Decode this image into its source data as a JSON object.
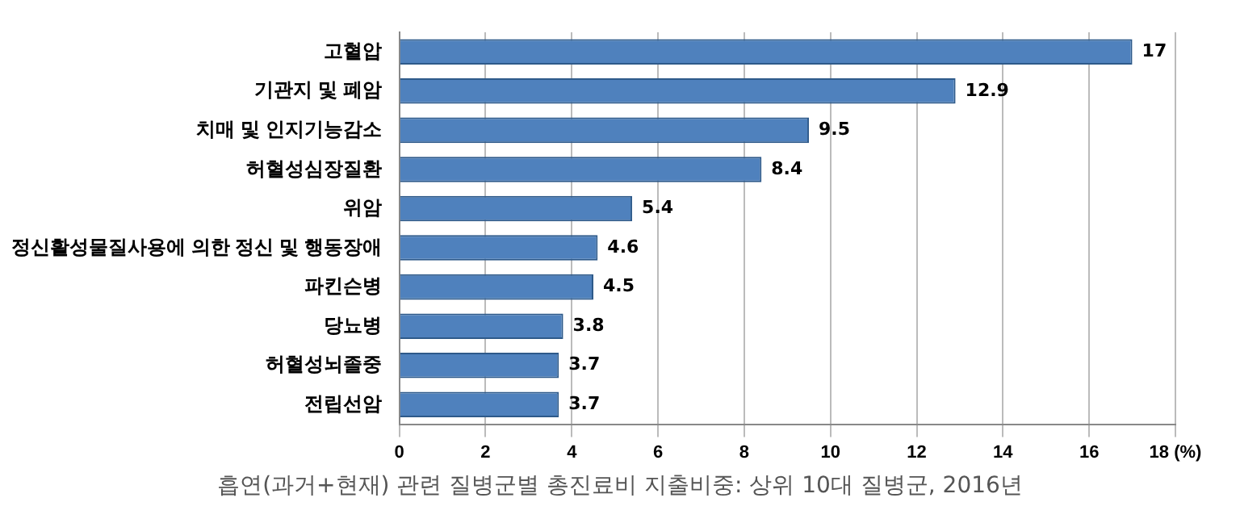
{
  "chart_data": {
    "type": "bar",
    "orientation": "horizontal",
    "categories": [
      "고혈압",
      "기관지 및 폐암",
      "치매 및 인지기능감소",
      "허혈성심장질환",
      "위암",
      "정신활성물질사용에 의한 정신 및 행동장애",
      "파킨슨병",
      "당뇨병",
      "허혈성뇌졸중",
      "전립선암"
    ],
    "values": [
      17,
      12.9,
      9.5,
      8.4,
      5.4,
      4.6,
      4.5,
      3.8,
      3.7,
      3.7
    ],
    "color": "#4f81bd",
    "xlim": [
      0,
      18
    ],
    "xticks": [
      0,
      2,
      4,
      6,
      8,
      10,
      12,
      14,
      16,
      {
        "value": 18,
        "label": "18 (%)"
      }
    ],
    "grid": "x",
    "data_labels": true,
    "annotations": [
      "흡연(과거+현재) 관련 질병군별 총진료비 지출비중: 상위 10대 질병군, 2016년"
    ]
  }
}
